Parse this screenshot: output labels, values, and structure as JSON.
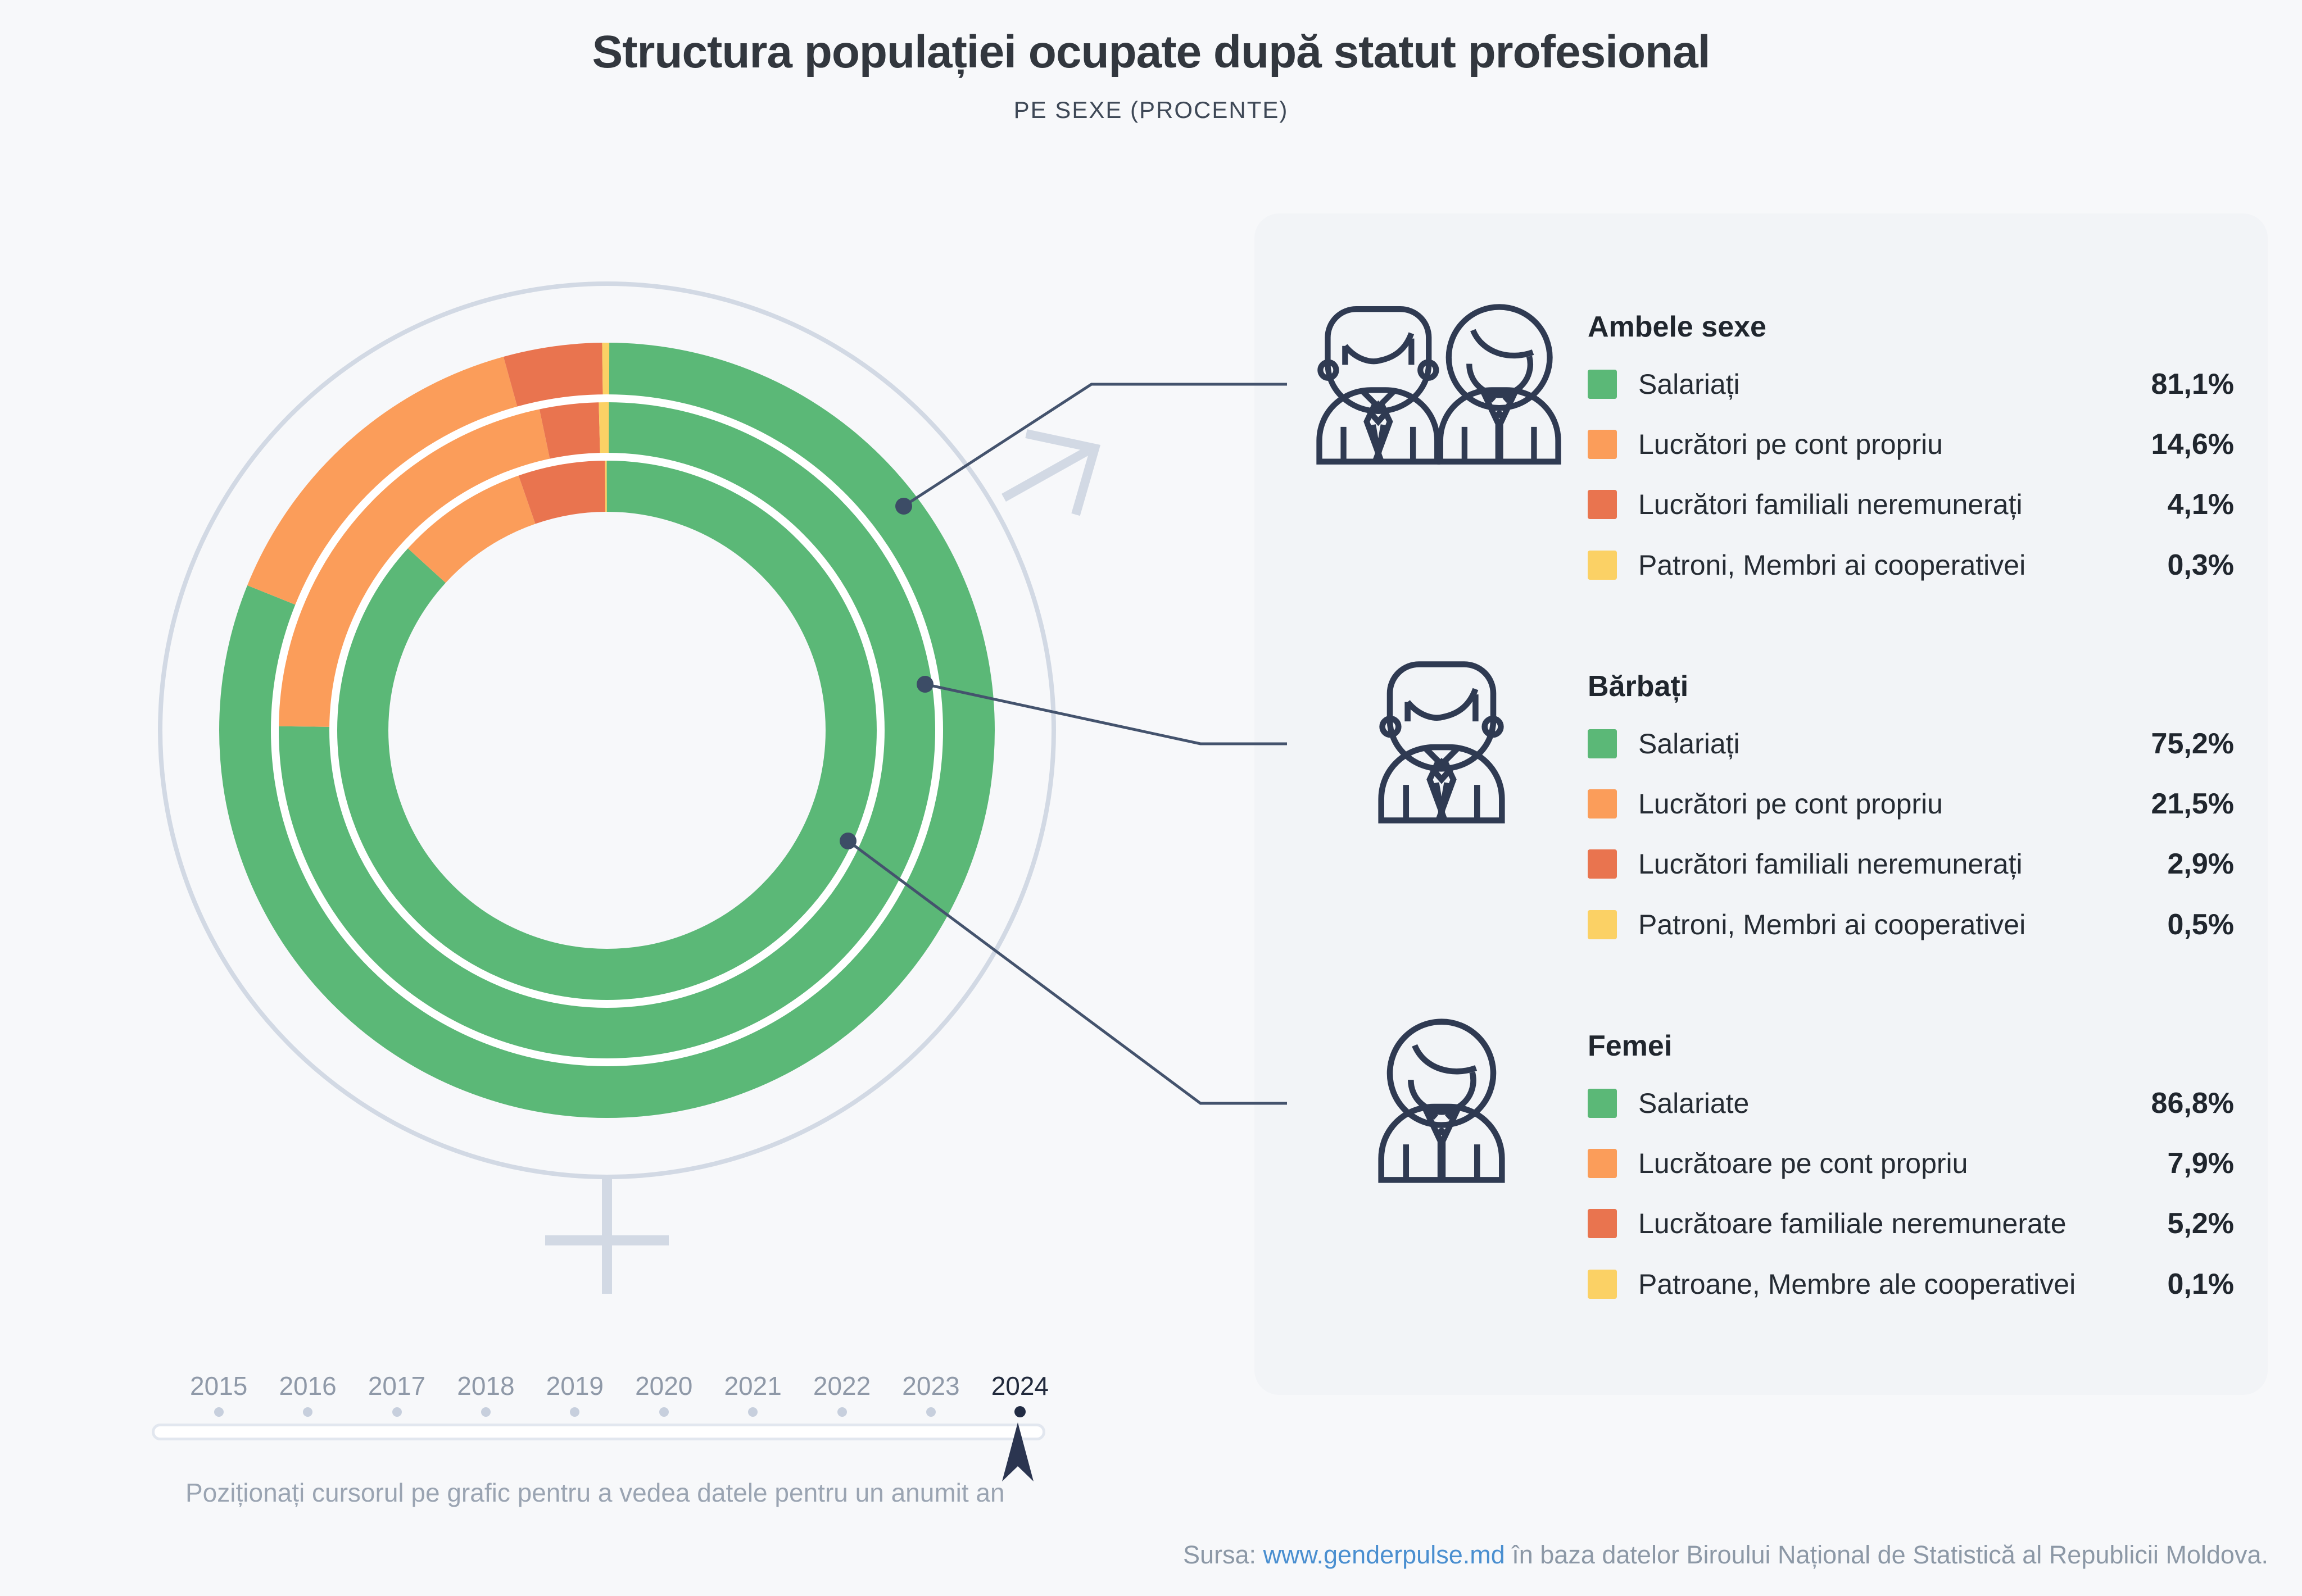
{
  "title": "Structura populației ocupate după statut profesional",
  "subtitle": "PE SEXE (PROCENTE)",
  "chart_data": {
    "type": "donut-multi-ring",
    "unit": "percent",
    "start_angle_deg": 0,
    "direction": "clockwise",
    "categories": [
      "Salariați",
      "Lucrători pe cont propriu",
      "Lucrători familiali neremunerați",
      "Patroni, Membri ai cooperativei"
    ],
    "colors": [
      "#5bb877",
      "#fb9d5a",
      "#e9744f",
      "#fbd165"
    ],
    "rings": [
      {
        "name": "Ambele sexe",
        "position": "outer",
        "values": [
          81.1,
          14.6,
          4.1,
          0.3
        ]
      },
      {
        "name": "Bărbați",
        "position": "middle",
        "values": [
          75.2,
          21.5,
          2.9,
          0.5
        ]
      },
      {
        "name": "Femei",
        "position": "inner",
        "values": [
          86.8,
          7.9,
          5.2,
          0.1
        ]
      }
    ]
  },
  "legend": {
    "groups": [
      {
        "title": "Ambele sexe",
        "icon": "man-woman-icon",
        "rows": [
          {
            "label": "Salariați",
            "value": "81,1%",
            "color": "#5bb877"
          },
          {
            "label": "Lucrători pe cont propriu",
            "value": "14,6%",
            "color": "#fb9d5a"
          },
          {
            "label": "Lucrători familiali neremunerați",
            "value": "4,1%",
            "color": "#e9744f"
          },
          {
            "label": "Patroni, Membri ai cooperativei",
            "value": "0,3%",
            "color": "#fbd165"
          }
        ]
      },
      {
        "title": "Bărbați",
        "icon": "man-icon",
        "rows": [
          {
            "label": "Salariați",
            "value": "75,2%",
            "color": "#5bb877"
          },
          {
            "label": "Lucrători pe cont propriu",
            "value": "21,5%",
            "color": "#fb9d5a"
          },
          {
            "label": "Lucrători familiali neremunerați",
            "value": "2,9%",
            "color": "#e9744f"
          },
          {
            "label": "Patroni, Membri ai cooperativei",
            "value": "0,5%",
            "color": "#fbd165"
          }
        ]
      },
      {
        "title": "Femei",
        "icon": "woman-icon",
        "rows": [
          {
            "label": "Salariate",
            "value": "86,8%",
            "color": "#5bb877"
          },
          {
            "label": "Lucrătoare pe cont propriu",
            "value": "7,9%",
            "color": "#fb9d5a"
          },
          {
            "label": "Lucrătoare familiale neremunerate",
            "value": "5,2%",
            "color": "#e9744f"
          },
          {
            "label": "Patroane, Membre ale cooperativei",
            "value": "0,1%",
            "color": "#fbd165"
          }
        ]
      }
    ]
  },
  "timeline": {
    "years": [
      "2015",
      "2016",
      "2017",
      "2018",
      "2019",
      "2020",
      "2021",
      "2022",
      "2023",
      "2024"
    ],
    "selected_year": "2024",
    "instruction": "Poziționați cursorul pe grafic pentru a vedea datele pentru un anumit an"
  },
  "source": {
    "prefix": "Sursa: ",
    "link": "www.genderpulse.md",
    "suffix": " în baza datelor Biroului Național de Statistică al Republicii Moldova."
  }
}
